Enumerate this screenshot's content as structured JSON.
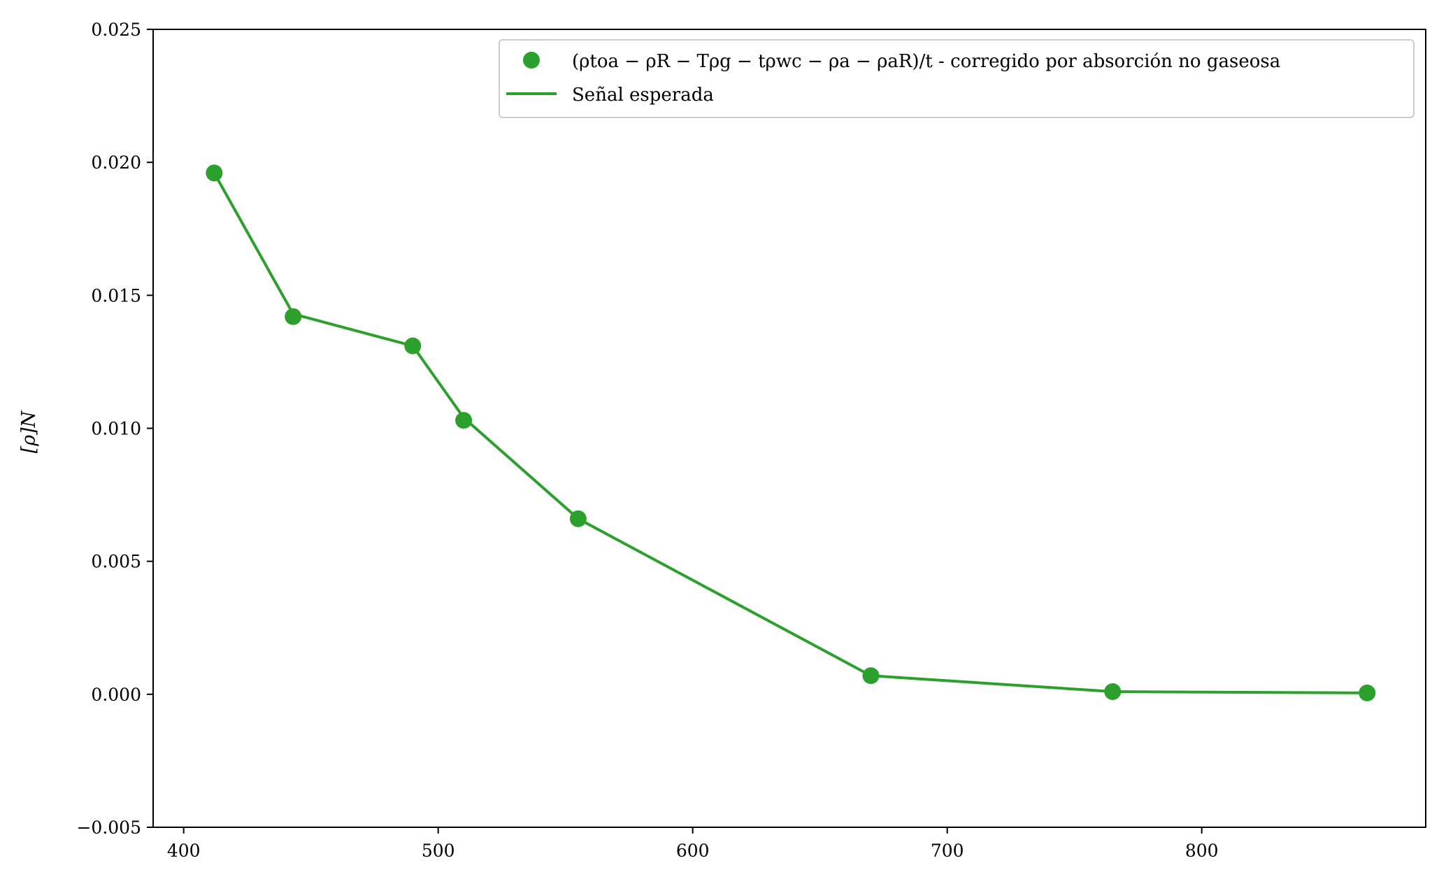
{
  "chart_data": {
    "type": "line",
    "title": "",
    "xlabel": "",
    "ylabel": "[ρ]N",
    "xlim": [
      388,
      888
    ],
    "ylim": [
      -0.005,
      0.025
    ],
    "x_ticks": [
      400,
      500,
      600,
      700,
      800
    ],
    "x_tick_labels": [
      "400",
      "500",
      "600",
      "700",
      "800"
    ],
    "y_ticks": [
      -0.005,
      0.0,
      0.005,
      0.01,
      0.015,
      0.02,
      0.025
    ],
    "y_tick_labels": [
      "−0.005",
      "0.000",
      "0.005",
      "0.010",
      "0.015",
      "0.020",
      "0.025"
    ],
    "grid": false,
    "legend_position": "top-right",
    "series": [
      {
        "name": "(ρtoa − ρR − Tρg − tρwc − ρa − ρaR)/t - corregido por absorción no gaseosa",
        "style": "markers",
        "color": "#2ca02c",
        "x": [
          412,
          443,
          490,
          510,
          555,
          670,
          765,
          865
        ],
        "y": [
          0.0196,
          0.0142,
          0.0131,
          0.0103,
          0.0066,
          0.0007,
          0.0001,
          5e-05
        ]
      },
      {
        "name": "Señal esperada",
        "style": "line",
        "color": "#2ca02c",
        "x": [
          412,
          443,
          490,
          510,
          555,
          670,
          765,
          865
        ],
        "y": [
          0.0196,
          0.0143,
          0.0131,
          0.0104,
          0.0066,
          0.0007,
          0.0001,
          5e-05
        ]
      }
    ]
  }
}
